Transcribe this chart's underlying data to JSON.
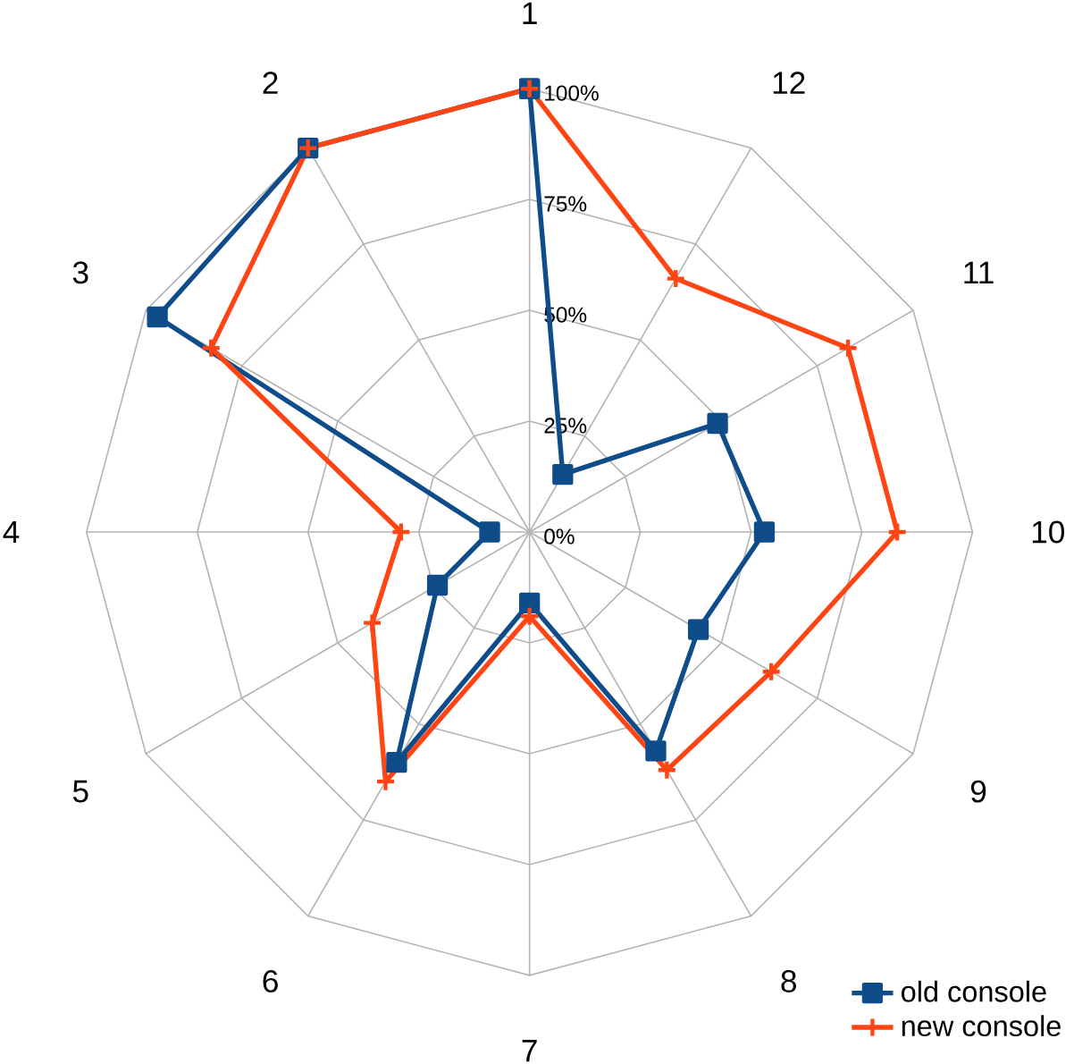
{
  "chart_data": {
    "type": "radar",
    "categories": [
      "1",
      "12",
      "11",
      "10",
      "9",
      "8",
      "7",
      "6",
      "5",
      "4",
      "3",
      "2"
    ],
    "series": [
      {
        "name": "old console",
        "color": "#0f4c8a",
        "marker": "square",
        "values": [
          100,
          15,
          49,
          53,
          44,
          57,
          16,
          60,
          24,
          9,
          97,
          100
        ]
      },
      {
        "name": "new console",
        "color": "#ff4514",
        "marker": "cross",
        "values": [
          100,
          66,
          83,
          83,
          63,
          62,
          19,
          65,
          41,
          29,
          83,
          100
        ]
      }
    ],
    "ylim": [
      0,
      100
    ],
    "yticks": [
      {
        "value": 0,
        "label": "0%"
      },
      {
        "value": 25,
        "label": "25%"
      },
      {
        "value": 50,
        "label": "50%"
      },
      {
        "value": 75,
        "label": "75%"
      },
      {
        "value": 100,
        "label": "100%"
      }
    ],
    "grid": true,
    "legend": "bottom right"
  }
}
